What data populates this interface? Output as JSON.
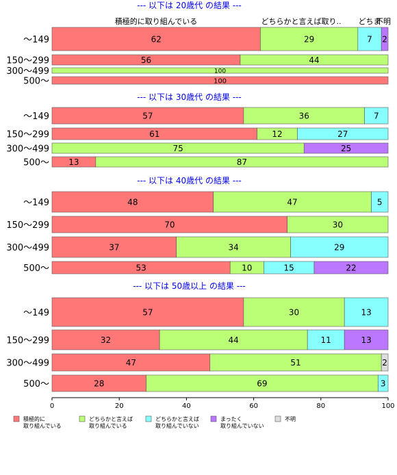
{
  "chart_data": {
    "type": "bar",
    "stacked": true,
    "orientation": "horizontal",
    "xlim": [
      0,
      100
    ],
    "xticks": [
      0,
      20,
      40,
      60,
      80,
      100
    ],
    "grid": false,
    "legend_position": "bottom",
    "column_headers": [
      "積極的に取り組んでいる",
      "どちらかと言えば取り..",
      "どちま",
      "不明"
    ],
    "legend": [
      {
        "label": [
          "積極的に",
          "取り組んでいる"
        ],
        "color": "#ff7777"
      },
      {
        "label": [
          "どちらかと言えば",
          "取り組んでいる"
        ],
        "color": "#bbff77"
      },
      {
        "label": [
          "どちらかと言えば",
          "取り組んでいない"
        ],
        "color": "#88ffff"
      },
      {
        "label": [
          "まったく",
          "取り組んでいない"
        ],
        "color": "#bb77ff"
      },
      {
        "label": [
          "不明"
        ],
        "color": "#dddddd"
      }
    ],
    "groups": [
      {
        "title": "--- 以下は 20歳代 の結果 ---",
        "rows": [
          {
            "label": "～149",
            "values": [
              62,
              29,
              7,
              2,
              0
            ]
          },
          {
            "label": "150～299",
            "values": [
              56,
              44,
              0,
              0,
              0
            ]
          },
          {
            "label": "300～499",
            "values": [
              0,
              100,
              0,
              0,
              0
            ]
          },
          {
            "label": "500～",
            "values": [
              100,
              0,
              0,
              0,
              0
            ]
          }
        ]
      },
      {
        "title": "--- 以下は 30歳代 の結果 ---",
        "rows": [
          {
            "label": "～149",
            "values": [
              57,
              36,
              7,
              0,
              0
            ]
          },
          {
            "label": "150～299",
            "values": [
              61,
              12,
              27,
              0,
              0
            ]
          },
          {
            "label": "300～499",
            "values": [
              0,
              75,
              0,
              25,
              0
            ]
          },
          {
            "label": "500～",
            "values": [
              13,
              87,
              0,
              0,
              0
            ]
          }
        ]
      },
      {
        "title": "--- 以下は 40歳代 の結果 ---",
        "rows": [
          {
            "label": "～149",
            "values": [
              48,
              47,
              5,
              0,
              0
            ]
          },
          {
            "label": "150～299",
            "values": [
              70,
              30,
              0,
              0,
              0
            ]
          },
          {
            "label": "300～499",
            "values": [
              37,
              34,
              29,
              0,
              0
            ]
          },
          {
            "label": "500～",
            "values": [
              53,
              10,
              15,
              22,
              0
            ]
          }
        ]
      },
      {
        "title": "--- 以下は 50歳以上 の結果 ---",
        "rows": [
          {
            "label": "～149",
            "values": [
              57,
              30,
              13,
              0,
              0
            ]
          },
          {
            "label": "150～299",
            "values": [
              32,
              44,
              11,
              13,
              0
            ]
          },
          {
            "label": "300～499",
            "values": [
              47,
              51,
              0,
              0,
              2
            ]
          },
          {
            "label": "500～",
            "values": [
              28,
              69,
              3,
              0,
              0
            ]
          }
        ]
      }
    ]
  }
}
